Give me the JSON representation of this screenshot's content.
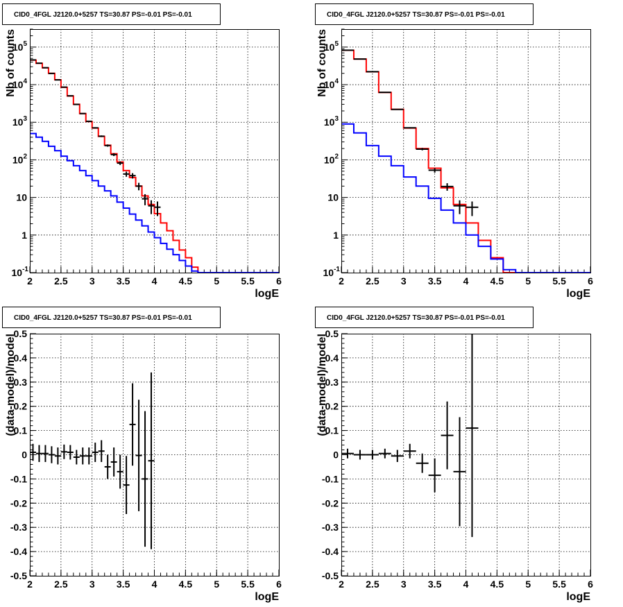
{
  "chart_data": [
    {
      "type": "line",
      "title": "CID0_4FGL J2120.0+5257 TS=30.87 PS=-0.01 PS=-0.01",
      "xlabel": "logE",
      "ylabel": "Nb of counts",
      "xlim": [
        2,
        6
      ],
      "ylim": [
        0.1,
        300000
      ],
      "yscale": "log",
      "grid": true,
      "x_ticks": [
        "2",
        "2.5",
        "3",
        "3.5",
        "4",
        "4.5",
        "5",
        "5.5",
        "6"
      ],
      "series": [
        {
          "color": "#ff0000",
          "style": "step",
          "bin_edges": [
            2.0,
            2.1,
            2.2,
            2.3,
            2.4,
            2.5,
            2.6,
            2.7,
            2.8,
            2.9,
            3.0,
            3.1,
            3.2,
            3.3,
            3.4,
            3.5,
            3.6,
            3.7,
            3.8,
            3.9,
            4.0,
            4.1,
            4.2,
            4.3,
            4.4,
            4.5,
            4.6,
            4.7,
            4.8,
            4.9,
            5.0,
            5.1,
            5.2,
            5.3,
            5.4,
            5.5,
            5.6,
            5.7,
            5.8,
            5.9,
            6.0
          ],
          "values": [
            45000,
            37000,
            28000,
            20000,
            13500,
            8500,
            5000,
            3000,
            1700,
            1050,
            700,
            420,
            245,
            145,
            88,
            52,
            34,
            20,
            11,
            6.5,
            3.7,
            2.1,
            1.3,
            0.72,
            0.4,
            0.25,
            0.14,
            0.1,
            0.1,
            0.1,
            0.1,
            0.1,
            0.1,
            0.1,
            0.1,
            0.1,
            0.1,
            0.1,
            0.1,
            0.1
          ]
        },
        {
          "color": "#0000ff",
          "style": "step",
          "bin_edges": [
            2.0,
            2.1,
            2.2,
            2.3,
            2.4,
            2.5,
            2.6,
            2.7,
            2.8,
            2.9,
            3.0,
            3.1,
            3.2,
            3.3,
            3.4,
            3.5,
            3.6,
            3.7,
            3.8,
            3.9,
            4.0,
            4.1,
            4.2,
            4.3,
            4.4,
            4.5,
            4.6,
            4.7,
            4.8,
            4.9,
            5.0,
            5.1,
            5.2,
            5.3,
            5.4,
            5.5,
            5.6,
            5.7,
            5.8,
            5.9,
            6.0
          ],
          "values": [
            500,
            400,
            310,
            230,
            175,
            125,
            95,
            70,
            52,
            38,
            28,
            20,
            15,
            11,
            7.5,
            5.2,
            3.6,
            2.5,
            1.75,
            1.2,
            0.85,
            0.6,
            0.42,
            0.3,
            0.21,
            0.15,
            0.11,
            0.1,
            0.1,
            0.1,
            0.1,
            0.1,
            0.1,
            0.1,
            0.1,
            0.1,
            0.1,
            0.1,
            0.1,
            0.1
          ]
        }
      ],
      "data_points": {
        "color": "#000000",
        "x": [
          2.05,
          2.15,
          2.25,
          2.35,
          2.45,
          2.55,
          2.65,
          2.75,
          2.85,
          2.95,
          3.05,
          3.15,
          3.25,
          3.35,
          3.45,
          3.55,
          3.65,
          3.75,
          3.85,
          3.95,
          4.05
        ],
        "xerr": 0.05,
        "y": [
          45500,
          37200,
          28200,
          19900,
          13400,
          8600,
          5050,
          2980,
          1705,
          1060,
          710,
          425,
          240,
          138,
          82,
          42,
          38,
          20,
          9.2,
          6.0,
          5.5
        ],
        "yerr_low": [
          210,
          190,
          170,
          140,
          115,
          93,
          71,
          55,
          41,
          33,
          27,
          21,
          16,
          12,
          9,
          6.5,
          6.2,
          4.5,
          3.0,
          2.4,
          2.3
        ],
        "yerr_high": [
          210,
          190,
          170,
          140,
          115,
          93,
          71,
          55,
          41,
          33,
          27,
          21,
          16,
          12,
          9,
          6.5,
          6.2,
          4.5,
          3.0,
          2.4,
          2.3
        ]
      }
    },
    {
      "type": "line",
      "title": "CID0_4FGL J2120.0+5257 TS=30.87 PS=-0.01 PS=-0.01",
      "xlabel": "logE",
      "ylabel": "Nb of counts",
      "xlim": [
        2,
        6
      ],
      "ylim": [
        0.1,
        300000
      ],
      "yscale": "log",
      "grid": true,
      "x_ticks": [
        "2",
        "2.5",
        "3",
        "3.5",
        "4",
        "4.5",
        "5",
        "5.5",
        "6"
      ],
      "series": [
        {
          "color": "#ff0000",
          "style": "step",
          "bin_edges": [
            2.0,
            2.2,
            2.4,
            2.6,
            2.8,
            3.0,
            3.2,
            3.4,
            3.6,
            3.8,
            4.0,
            4.2,
            4.4,
            4.6,
            4.8,
            5.0,
            5.2,
            5.4,
            5.6,
            5.8,
            6.0
          ],
          "values": [
            82000,
            48000,
            22000,
            6200,
            2200,
            700,
            200,
            60,
            18,
            6.5,
            2.1,
            0.72,
            0.25,
            0.1,
            0.1,
            0.1,
            0.1,
            0.1,
            0.1,
            0.1
          ]
        },
        {
          "color": "#0000ff",
          "style": "step",
          "bin_edges": [
            2.0,
            2.2,
            2.4,
            2.6,
            2.8,
            3.0,
            3.2,
            3.4,
            3.6,
            3.8,
            4.0,
            4.2,
            4.4,
            4.6,
            4.8,
            5.0,
            5.2,
            5.4,
            5.6,
            5.8,
            6.0
          ],
          "values": [
            900,
            520,
            240,
            125,
            70,
            35,
            20,
            9.5,
            4.6,
            2.1,
            1.0,
            0.5,
            0.23,
            0.12,
            0.1,
            0.1,
            0.1,
            0.1,
            0.1,
            0.1
          ]
        }
      ],
      "data_points": {
        "color": "#000000",
        "x": [
          2.1,
          2.3,
          2.5,
          2.7,
          2.9,
          3.1,
          3.3,
          3.5,
          3.7,
          3.9,
          4.1
        ],
        "xerr": 0.1,
        "y": [
          82500,
          48100,
          22050,
          6230,
          2190,
          710,
          193,
          53,
          19.5,
          6.0,
          5.5
        ],
        "yerr_low": [
          290,
          220,
          150,
          80,
          47,
          27,
          14,
          7.3,
          4.4,
          2.4,
          2.3
        ],
        "yerr_high": [
          290,
          220,
          150,
          80,
          47,
          27,
          14,
          7.3,
          4.4,
          2.4,
          2.3
        ]
      }
    },
    {
      "type": "scatter",
      "title": "CID0_4FGL J2120.0+5257 TS=30.87 PS=-0.01 PS=-0.01",
      "xlabel": "logE",
      "ylabel": "(data-model)/model",
      "xlim": [
        2,
        6
      ],
      "ylim": [
        -0.5,
        0.5
      ],
      "yscale": "linear",
      "grid": true,
      "x_ticks": [
        "2",
        "2.5",
        "3",
        "3.5",
        "4",
        "4.5",
        "5",
        "5.5",
        "6"
      ],
      "y_ticks": [
        "-0.5",
        "-0.4",
        "-0.3",
        "-0.2",
        "-0.1",
        "0",
        "0.1",
        "0.2",
        "0.3",
        "0.4",
        "0.5"
      ],
      "data_points": {
        "color": "#000000",
        "x": [
          2.05,
          2.15,
          2.25,
          2.35,
          2.45,
          2.55,
          2.65,
          2.75,
          2.85,
          2.95,
          3.05,
          3.15,
          3.25,
          3.35,
          3.45,
          3.55,
          3.65,
          3.75,
          3.85,
          3.95
        ],
        "xerr": 0.05,
        "y": [
          0.01,
          0.005,
          0.005,
          0.0,
          -0.005,
          0.012,
          0.01,
          -0.01,
          -0.005,
          -0.005,
          0.01,
          0.015,
          -0.05,
          -0.03,
          -0.07,
          -0.125,
          0.125,
          -0.003,
          -0.1,
          -0.025
        ],
        "yerr_low": [
          0.035,
          0.035,
          0.035,
          0.035,
          0.035,
          0.03,
          0.03,
          0.03,
          0.035,
          0.035,
          0.04,
          0.045,
          0.05,
          0.06,
          0.07,
          0.12,
          0.17,
          0.23,
          0.28,
          0.365
        ],
        "yerr_high": [
          0.035,
          0.035,
          0.035,
          0.035,
          0.035,
          0.03,
          0.03,
          0.03,
          0.035,
          0.035,
          0.04,
          0.045,
          0.05,
          0.06,
          0.07,
          0.12,
          0.17,
          0.23,
          0.28,
          0.365
        ]
      }
    },
    {
      "type": "scatter",
      "title": "CID0_4FGL J2120.0+5257 TS=30.87 PS=-0.01 PS=-0.01",
      "xlabel": "logE",
      "ylabel": "(data-model)/model",
      "xlim": [
        2,
        6
      ],
      "ylim": [
        -0.5,
        0.5
      ],
      "yscale": "linear",
      "grid": true,
      "x_ticks": [
        "2",
        "2.5",
        "3",
        "3.5",
        "4",
        "4.5",
        "5",
        "5.5",
        "6"
      ],
      "y_ticks": [
        "-0.5",
        "-0.4",
        "-0.3",
        "-0.2",
        "-0.1",
        "0",
        "0.1",
        "0.2",
        "0.3",
        "0.4",
        "0.5"
      ],
      "data_points": {
        "color": "#000000",
        "x": [
          2.1,
          2.3,
          2.5,
          2.7,
          2.9,
          3.1,
          3.3,
          3.5,
          3.7,
          3.9,
          4.1
        ],
        "xerr": 0.1,
        "y": [
          0.005,
          0.0,
          0.0,
          0.005,
          -0.005,
          0.015,
          -0.035,
          -0.085,
          0.08,
          -0.07,
          0.11
        ],
        "yerr_low": [
          0.02,
          0.02,
          0.02,
          0.02,
          0.025,
          0.03,
          0.04,
          0.07,
          0.14,
          0.225,
          0.45
        ],
        "yerr_high": [
          0.02,
          0.02,
          0.02,
          0.02,
          0.025,
          0.03,
          0.04,
          0.07,
          0.14,
          0.225,
          0.45
        ]
      }
    }
  ]
}
